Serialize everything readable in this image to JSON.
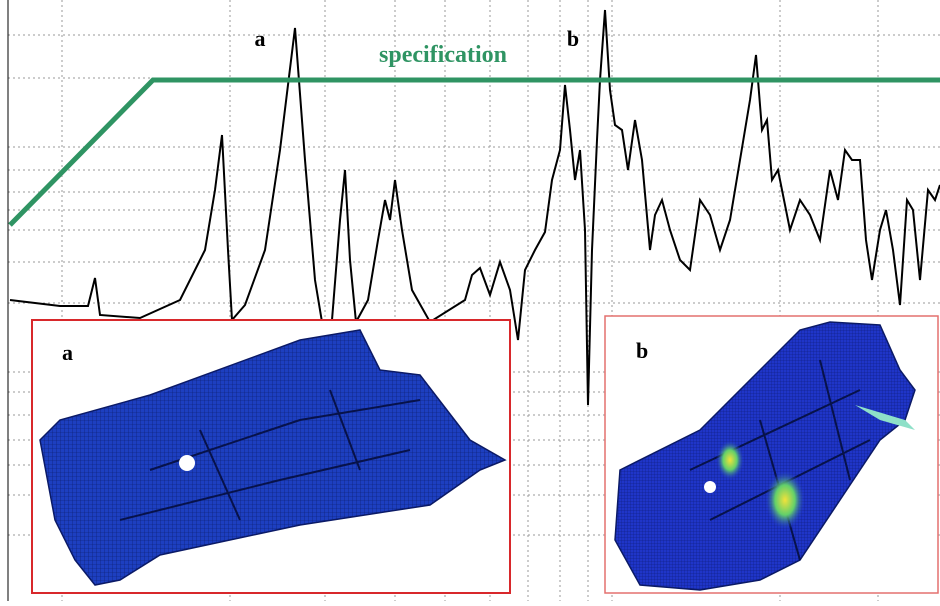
{
  "figure": {
    "peak_a": "a",
    "peak_b": "b",
    "specification": "specification",
    "insets": [
      {
        "label": "a"
      },
      {
        "label": "b"
      }
    ]
  }
}
